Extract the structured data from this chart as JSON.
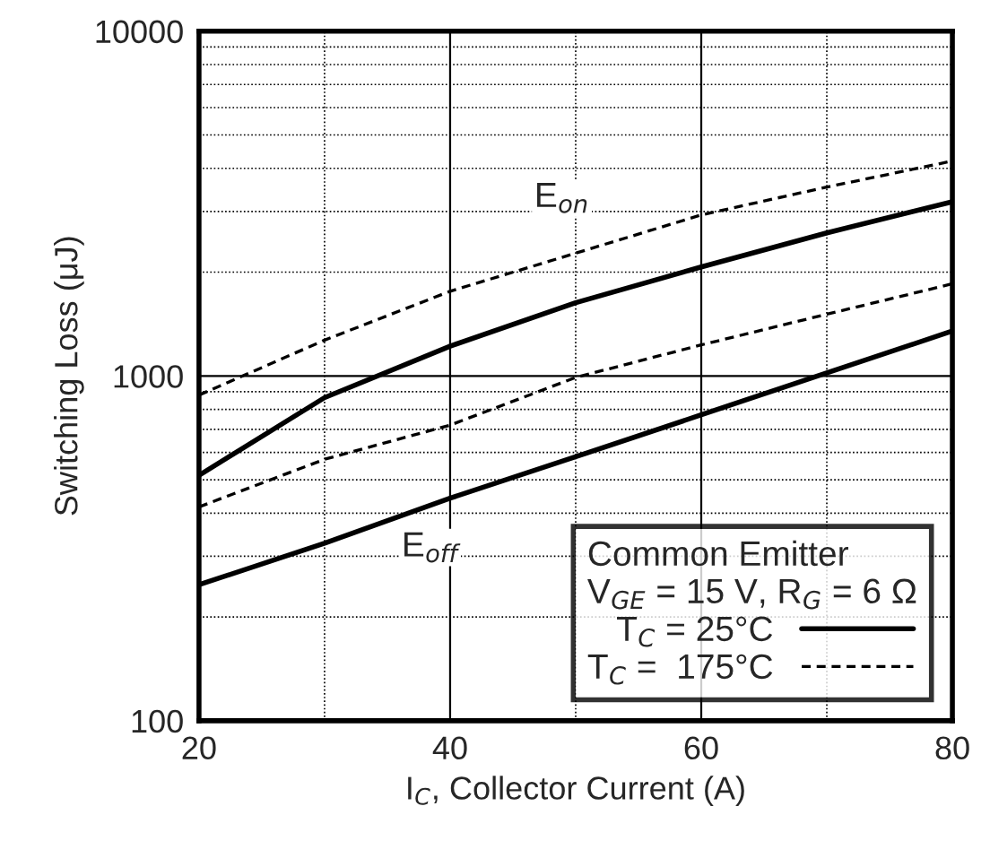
{
  "chart_data": {
    "type": "line",
    "xlabel": "I$_{C}$, Collector Current (A)",
    "ylabel": "Switching Loss (μJ)",
    "x": [
      20,
      30,
      40,
      50,
      60,
      70,
      80
    ],
    "series": [
      {
        "name": "T$_{C}$ = 25°C",
        "color": "#000000",
        "line_style": "solid",
        "values": [
          515,
          865,
          1220,
          1630,
          2070,
          2600,
          3200
        ]
      },
      {
        "name": "T$_{C}$ =  175°C",
        "color": "#000000",
        "line_style": "dashed",
        "values": [
          880,
          1270,
          1760,
          2270,
          2930,
          3530,
          4200
        ]
      },
      {
        "color": "#000000",
        "line_style": "solid",
        "values": [
          248,
          327,
          442,
          583,
          771,
          1020,
          1350
        ]
      },
      {
        "color": "#000000",
        "line_style": "dashed",
        "values": [
          417,
          573,
          720,
          990,
          1230,
          1510,
          1850
        ]
      }
    ],
    "log": "y",
    "xlim": [
      20,
      80
    ],
    "xticks": [
      20,
      40,
      60,
      80
    ],
    "ylim": [
      100,
      10000
    ],
    "yticks": [
      100,
      1000,
      10000
    ],
    "grid": true,
    "legend": "bottom right",
    "legend_title": "Common Emitter\nV$_{GE}$ = 15 V, R$_{G}$ = 6 Ω",
    "annotations": [
      {
        "text": "E$_{on}$",
        "x": 48.9,
        "y": 3280
      },
      {
        "text": "E$_{off}$",
        "x": 38.4,
        "y": 318
      }
    ]
  }
}
